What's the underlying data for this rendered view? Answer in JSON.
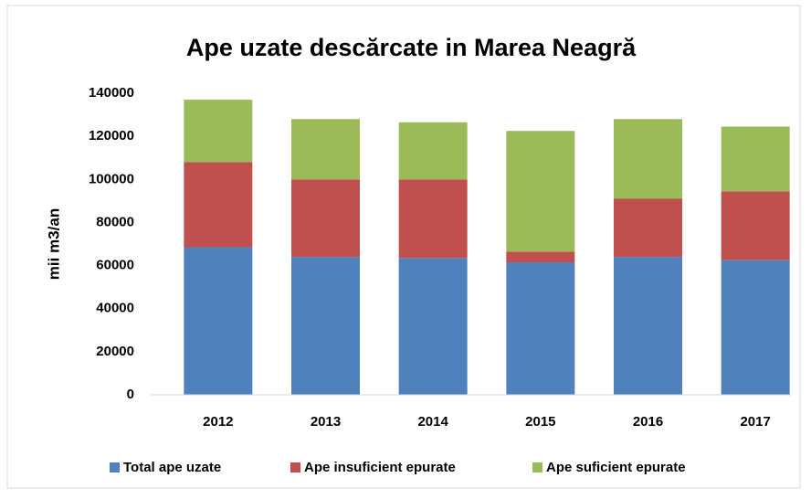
{
  "chart_data": {
    "type": "stacked_bar",
    "title": "Ape uzate descărcate in Marea Neagră",
    "y_label": "mii m3/an",
    "categories": [
      "2012",
      "2013",
      "2014",
      "2015",
      "2016",
      "2017"
    ],
    "series": [
      {
        "name": "Total ape uzate",
        "color": "#4f81bd",
        "values": [
          68500,
          64000,
          63500,
          61500,
          64000,
          62500
        ]
      },
      {
        "name": "Ape insuficient epurate",
        "color": "#c0504d",
        "values": [
          39500,
          36000,
          36500,
          5000,
          27000,
          32000
        ]
      },
      {
        "name": "Ape suficient epurate",
        "color": "#9bbb59",
        "values": [
          29000,
          28000,
          26500,
          56000,
          37000,
          30000
        ]
      }
    ],
    "ylim": [
      0,
      140000
    ],
    "yticks": [
      0,
      20000,
      40000,
      60000,
      80000,
      100000,
      120000,
      140000
    ],
    "grid": false,
    "legend": "bottom"
  }
}
